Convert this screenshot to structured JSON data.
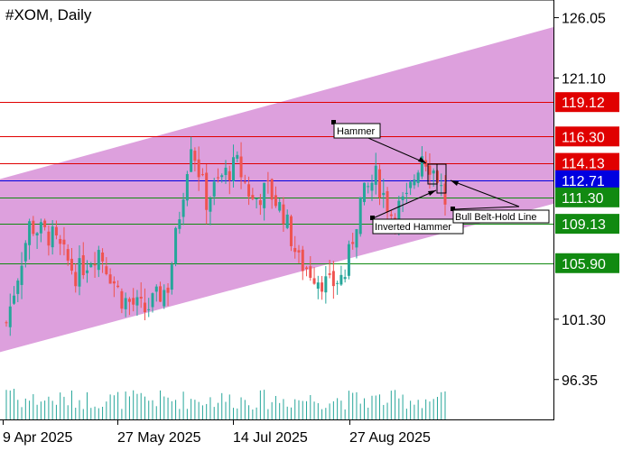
{
  "chart_data": {
    "type": "candlestick",
    "title": "#XOM, Daily",
    "y_ticks": [
      "126.05",
      "121.10",
      "101.30",
      "96.35"
    ],
    "x_ticks": [
      "9 Apr 2025",
      "27 May 2025",
      "14 Jul 2025",
      "27 Aug 2025"
    ],
    "ylim": [
      93.0,
      127.5
    ],
    "price_levels": [
      {
        "value": 119.12,
        "label": "119.12",
        "color": "#e00000"
      },
      {
        "value": 116.3,
        "label": "116.30",
        "color": "#e00000"
      },
      {
        "value": 114.13,
        "label": "114.13",
        "color": "#e00000"
      },
      {
        "value": 112.71,
        "label": "112.71",
        "color": "#0000e0"
      },
      {
        "value": 111.3,
        "label": "111.30",
        "color": "#118a11"
      },
      {
        "value": 109.13,
        "label": "109.13",
        "color": "#118a11"
      },
      {
        "value": 105.9,
        "label": "105.90",
        "color": "#118a11"
      }
    ],
    "annotations": [
      "Hammer",
      "Inverted Hammer",
      "Bull Belt-Hold Line"
    ],
    "channel": {
      "color": "#dda0dd",
      "upper": [
        112.8,
        125.3
      ],
      "lower": [
        98.6,
        110.8
      ]
    },
    "colors": {
      "bull": "#26a69a",
      "bear": "#ef5350",
      "volume": "#26a69a"
    }
  }
}
